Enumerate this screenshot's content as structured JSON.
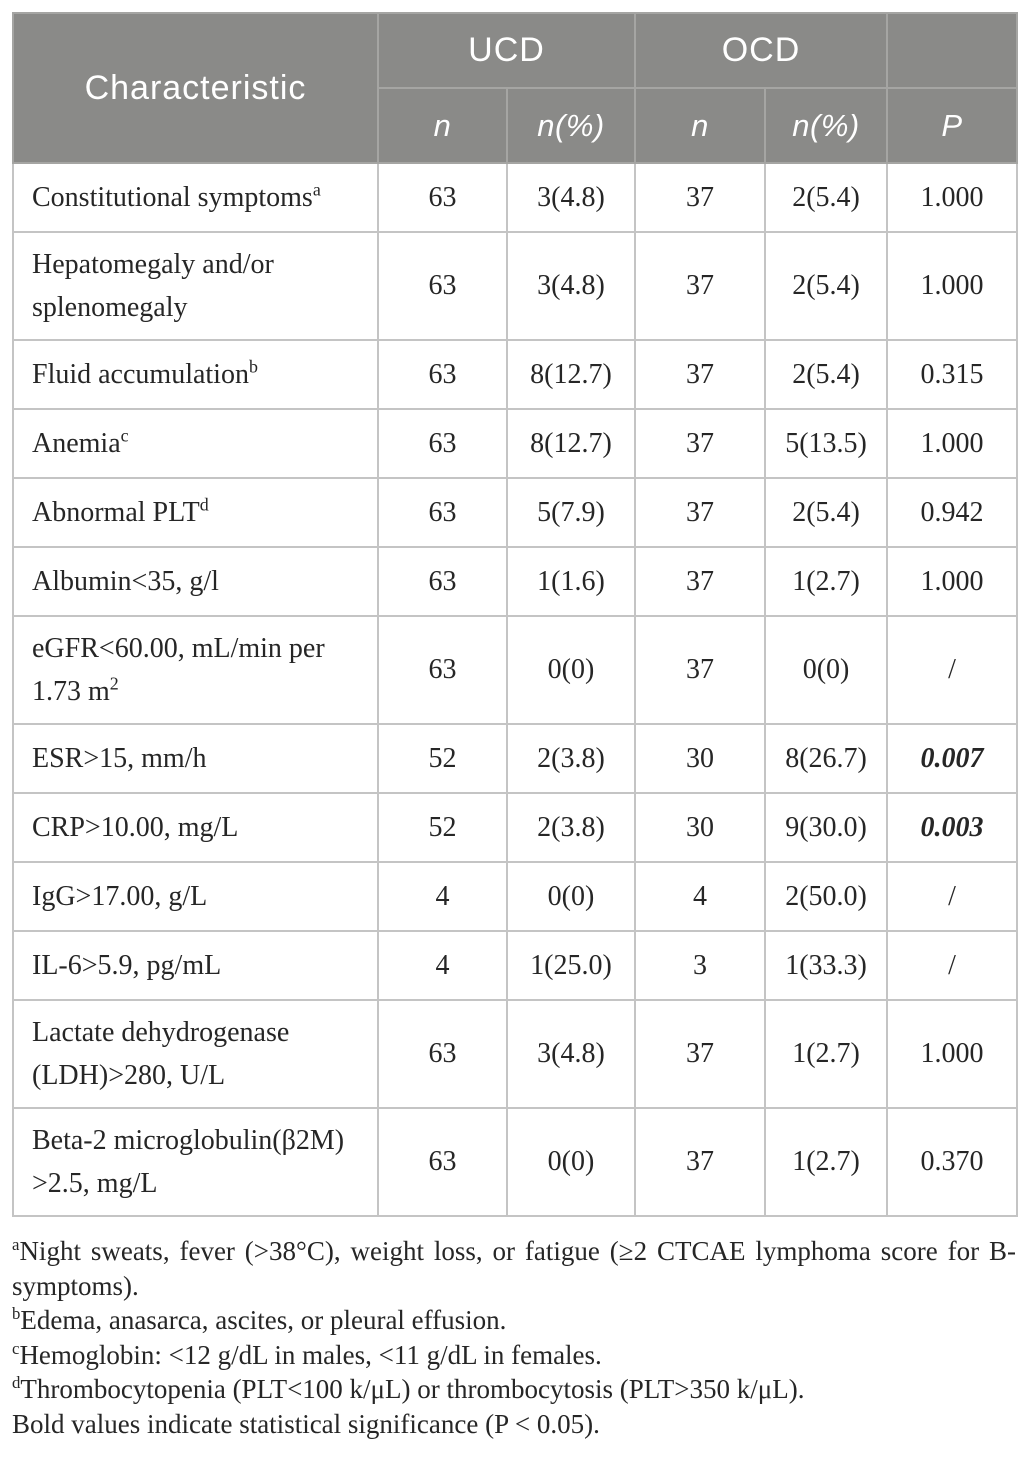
{
  "colors": {
    "header_bg": "#8a8a88",
    "header_text": "#ffffff",
    "grid_line": "#c4c4c4",
    "header_grid_line": "#a5a5a3",
    "body_text": "#262626"
  },
  "table": {
    "header": {
      "characteristic": "Characteristic",
      "ucd": "UCD",
      "ocd": "OCD",
      "ucd_n": "n",
      "ucd_npct": "n(%)",
      "ocd_n": "n",
      "ocd_npct": "n(%)",
      "p": "P"
    },
    "rows": [
      {
        "label": "Constitutional symptoms",
        "sup": "a",
        "ucd_n": "63",
        "ucd_npct": "3(4.8)",
        "ocd_n": "37",
        "ocd_npct": "2(5.4)",
        "p": "1.000",
        "p_bold": false
      },
      {
        "label": "Hepatomegaly and/or\nsplenomegaly",
        "sup": "",
        "ucd_n": "63",
        "ucd_npct": "3(4.8)",
        "ocd_n": "37",
        "ocd_npct": "2(5.4)",
        "p": "1.000",
        "p_bold": false
      },
      {
        "label": "Fluid accumulation",
        "sup": "b",
        "ucd_n": "63",
        "ucd_npct": "8(12.7)",
        "ocd_n": "37",
        "ocd_npct": "2(5.4)",
        "p": "0.315",
        "p_bold": false
      },
      {
        "label": "Anemia",
        "sup": "c",
        "ucd_n": "63",
        "ucd_npct": "8(12.7)",
        "ocd_n": "37",
        "ocd_npct": "5(13.5)",
        "p": "1.000",
        "p_bold": false
      },
      {
        "label": "Abnormal PLT",
        "sup": "d",
        "ucd_n": "63",
        "ucd_npct": "5(7.9)",
        "ocd_n": "37",
        "ocd_npct": "2(5.4)",
        "p": "0.942",
        "p_bold": false
      },
      {
        "label": "Albumin<35, g/l",
        "sup": "",
        "ucd_n": "63",
        "ucd_npct": "1(1.6)",
        "ocd_n": "37",
        "ocd_npct": "1(2.7)",
        "p": "1.000",
        "p_bold": false
      },
      {
        "label": "eGFR<60.00, mL/min per\n1.73 m",
        "sup": "2",
        "ucd_n": "63",
        "ucd_npct": "0(0)",
        "ocd_n": "37",
        "ocd_npct": "0(0)",
        "p": "/",
        "p_bold": false
      },
      {
        "label": "ESR>15, mm/h",
        "sup": "",
        "ucd_n": "52",
        "ucd_npct": "2(3.8)",
        "ocd_n": "30",
        "ocd_npct": "8(26.7)",
        "p": "0.007",
        "p_bold": true
      },
      {
        "label": "CRP>10.00, mg/L",
        "sup": "",
        "ucd_n": "52",
        "ucd_npct": "2(3.8)",
        "ocd_n": "30",
        "ocd_npct": "9(30.0)",
        "p": "0.003",
        "p_bold": true
      },
      {
        "label": "IgG>17.00, g/L",
        "sup": "",
        "ucd_n": "4",
        "ucd_npct": "0(0)",
        "ocd_n": "4",
        "ocd_npct": "2(50.0)",
        "p": "/",
        "p_bold": false
      },
      {
        "label": "IL-6>5.9, pg/mL",
        "sup": "",
        "ucd_n": "4",
        "ucd_npct": "1(25.0)",
        "ocd_n": "3",
        "ocd_npct": "1(33.3)",
        "p": "/",
        "p_bold": false
      },
      {
        "label": "Lactate dehydrogenase\n(LDH)>280, U/L",
        "sup": "",
        "ucd_n": "63",
        "ucd_npct": "3(4.8)",
        "ocd_n": "37",
        "ocd_npct": "1(2.7)",
        "p": "1.000",
        "p_bold": false
      },
      {
        "label": "Beta-2 microglobulin(β2M)\n>2.5, mg/L",
        "sup": "",
        "ucd_n": "63",
        "ucd_npct": "0(0)",
        "ocd_n": "37",
        "ocd_npct": "1(2.7)",
        "p": "0.370",
        "p_bold": false
      }
    ],
    "footnotes": [
      {
        "sup": "a",
        "text": "Night sweats, fever (>38°C), weight loss, or fatigue (≥2 CTCAE lymphoma score for B-symptoms)."
      },
      {
        "sup": "b",
        "text": "Edema, anasarca, ascites, or pleural effusion."
      },
      {
        "sup": "c",
        "text": "Hemoglobin: <12 g/dL in males, <11 g/dL in females."
      },
      {
        "sup": "d",
        "text": "Thrombocytopenia (PLT<100 k/μL) or thrombocytosis (PLT>350 k/μL)."
      },
      {
        "sup": "",
        "text": "Bold values indicate statistical significance (P < 0.05)."
      }
    ]
  }
}
